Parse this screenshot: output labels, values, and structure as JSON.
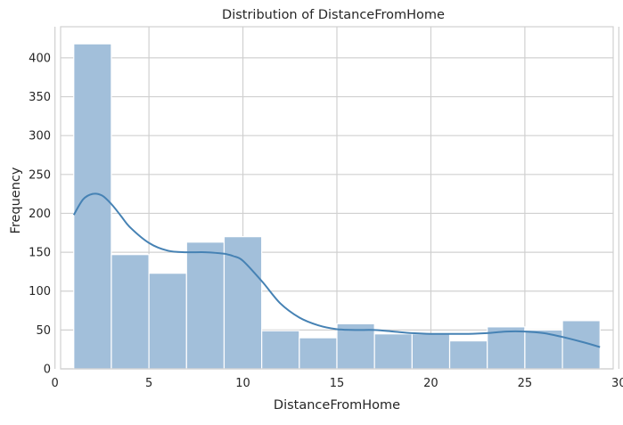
{
  "chart_data": {
    "type": "bar",
    "title": "Distribution of DistanceFromHome",
    "xlabel": "DistanceFromHome",
    "ylabel": "Frequency",
    "xlim": [
      0.3,
      29.7
    ],
    "ylim": [
      0,
      440
    ],
    "xticks": [
      0,
      5,
      10,
      15,
      20,
      25,
      30
    ],
    "yticks": [
      0,
      50,
      100,
      150,
      200,
      250,
      300,
      350,
      400
    ],
    "grid": true,
    "bin_edges": [
      1,
      3,
      5,
      7,
      9,
      11,
      13,
      15,
      17,
      19,
      21,
      23,
      25,
      27,
      29
    ],
    "values": [
      418,
      147,
      123,
      163,
      170,
      49,
      40,
      58,
      45,
      45,
      36,
      54,
      50,
      62
    ],
    "kde": {
      "x": [
        1,
        1.5,
        2,
        2.5,
        3,
        3.5,
        4,
        5,
        6,
        7,
        8,
        9,
        9.5,
        10,
        11,
        12,
        13,
        14,
        15,
        16,
        17,
        18,
        19,
        20,
        21,
        22,
        23,
        24,
        25,
        26,
        27,
        28,
        29
      ],
      "y": [
        198,
        218,
        225,
        223,
        212,
        197,
        182,
        162,
        152,
        150,
        150,
        148,
        145,
        139,
        113,
        84,
        66,
        56,
        51,
        50,
        50,
        48,
        46,
        45,
        45,
        45,
        46,
        48,
        48,
        46,
        41,
        35,
        28
      ]
    },
    "colors": {
      "bar_fill": "#a2bfda",
      "bar_stroke": "#ffffff",
      "kde_line": "#4682b4",
      "grid": "#d0d0d0",
      "frame": "#d0d0d0"
    }
  }
}
